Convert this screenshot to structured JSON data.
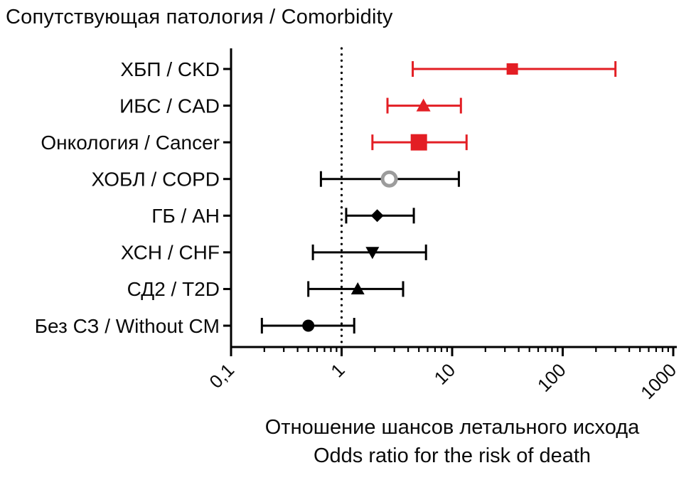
{
  "title": "Сопутствующая патология / Comorbidity",
  "chart_data": {
    "type": "forest",
    "title": "Сопутствующая патология / Comorbidity",
    "x_axis": {
      "scale": "log",
      "min": 0.1,
      "max": 1000,
      "major_ticks": [
        0.1,
        1,
        10,
        100,
        1000
      ],
      "tick_labels": [
        "0,1",
        "1",
        "10",
        "100",
        "1000"
      ],
      "reference_line": 1
    },
    "xlabel_lines": [
      "Отношение шансов летального исхода",
      "Odds ratio for the risk of death"
    ],
    "legend": "none",
    "grid": false,
    "rows": [
      {
        "label": "ХБП / CKD",
        "or": 35,
        "ci_low": 4.4,
        "ci_high": 300,
        "marker": "square",
        "size": 16,
        "color": "#e31e24"
      },
      {
        "label": "ИБС / CAD",
        "or": 5.5,
        "ci_low": 2.6,
        "ci_high": 12,
        "marker": "triangle-up",
        "size": 20,
        "color": "#e31e24"
      },
      {
        "label": "Онкология / Cancer",
        "or": 5.0,
        "ci_low": 1.9,
        "ci_high": 13.5,
        "marker": "square",
        "size": 23,
        "color": "#e31e24"
      },
      {
        "label": "ХОБЛ / COPD",
        "or": 2.7,
        "ci_low": 0.65,
        "ci_high": 11.5,
        "marker": "circle-open",
        "size": 21,
        "color": "#9c9c9c",
        "line_color": "#000000"
      },
      {
        "label": "ГБ / AH",
        "or": 2.1,
        "ci_low": 1.1,
        "ci_high": 4.5,
        "marker": "diamond",
        "size": 16,
        "color": "#000000"
      },
      {
        "label": "ХСН / CHF",
        "or": 1.9,
        "ci_low": 0.55,
        "ci_high": 5.8,
        "marker": "triangle-down",
        "size": 19,
        "color": "#000000"
      },
      {
        "label": "СД2 / T2D",
        "or": 1.4,
        "ci_low": 0.5,
        "ci_high": 3.6,
        "marker": "triangle-up",
        "size": 19,
        "color": "#000000"
      },
      {
        "label": "Без СЗ / Without CM",
        "or": 0.5,
        "ci_low": 0.19,
        "ci_high": 1.3,
        "marker": "circle",
        "size": 17,
        "color": "#000000"
      }
    ],
    "colors": {
      "significant": "#e31e24",
      "neutral": "#000000",
      "open_marker": "#9c9c9c",
      "axis": "#000000",
      "background": "#ffffff"
    }
  }
}
